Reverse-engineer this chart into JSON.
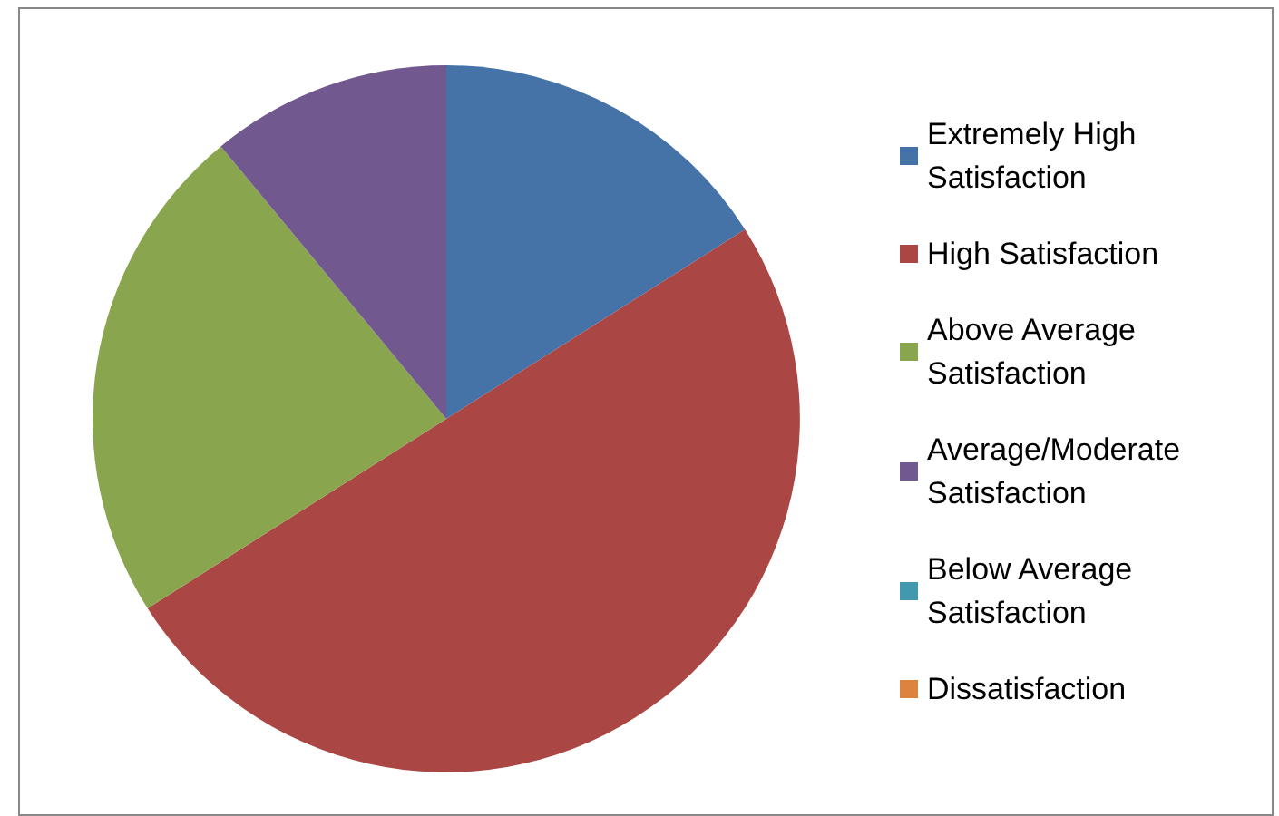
{
  "chart_data": {
    "type": "pie",
    "categories": [
      "Extremely High Satisfaction",
      "High Satisfaction",
      "Above Average Satisfaction",
      "Average/Moderate Satisfaction",
      "Below Average Satisfaction",
      "Dissatisfaction"
    ],
    "values": [
      16,
      50,
      23,
      11,
      0,
      0
    ],
    "colors": [
      "#4572a7",
      "#aa4643",
      "#89a54e",
      "#71588f",
      "#4198af",
      "#db843d"
    ],
    "legend": "right"
  }
}
